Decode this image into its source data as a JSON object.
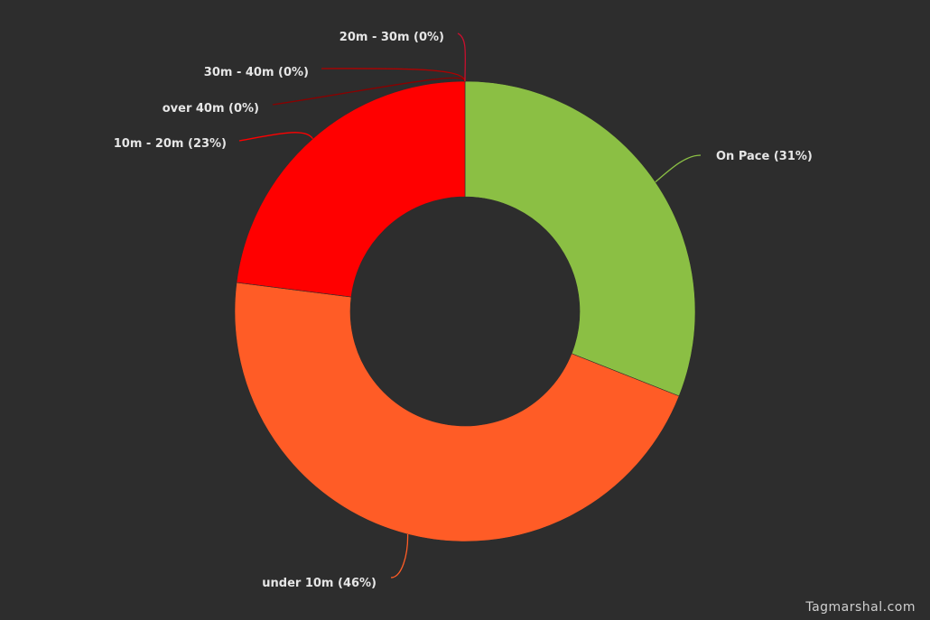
{
  "chart_data": {
    "type": "pie",
    "donut": true,
    "slices": [
      {
        "label": "On Pace (31%)",
        "value": 31,
        "color": "#8bbf44"
      },
      {
        "label": "under 10m (46%)",
        "value": 46,
        "color": "#ff5c26"
      },
      {
        "label": "10m - 20m (23%)",
        "value": 23,
        "color": "#ff0000"
      },
      {
        "label": "over 40m (0%)",
        "value": 0,
        "color": "#8a0000"
      },
      {
        "label": "30m - 40m (0%)",
        "value": 0,
        "color": "#b00000"
      },
      {
        "label": "20m - 30m (0%)",
        "value": 0,
        "color": "#c8102e"
      }
    ],
    "background": "#2d2d2d"
  },
  "watermark": "Tagmarshal.com"
}
